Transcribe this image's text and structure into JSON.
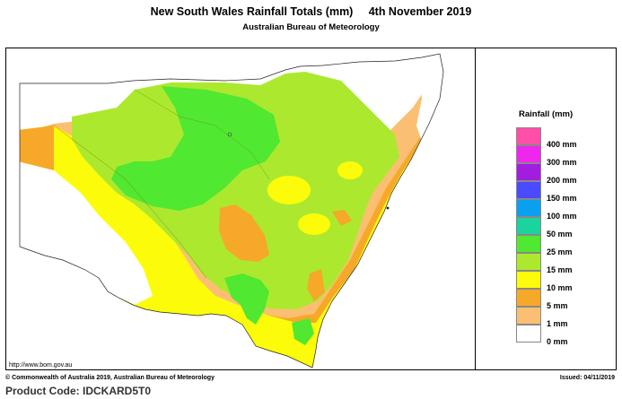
{
  "header": {
    "title": "New South Wales Rainfall Totals (mm)     4th November 2019",
    "subtitle": "Australian Bureau of Meteorology"
  },
  "legend": {
    "title": "Rainfall (mm)",
    "items": [
      {
        "label": "400 mm",
        "color": "#ff4fa7"
      },
      {
        "label": "300 mm",
        "color": "#ee26ee"
      },
      {
        "label": "200 mm",
        "color": "#a21de0"
      },
      {
        "label": "150 mm",
        "color": "#4a4aff"
      },
      {
        "label": "100 mm",
        "color": "#0aa0f0"
      },
      {
        "label": "50 mm",
        "color": "#1ad39f"
      },
      {
        "label": "25 mm",
        "color": "#50e830"
      },
      {
        "label": "15 mm",
        "color": "#ace92e"
      },
      {
        "label": "10 mm",
        "color": "#fcfc0a"
      },
      {
        "label": "5 mm",
        "color": "#f6a828"
      },
      {
        "label": "1 mm",
        "color": "#fbbf73"
      },
      {
        "label": "0 mm",
        "color": "#ffffff"
      }
    ]
  },
  "footer": {
    "url": "http://www.bom.gov.au",
    "copyright": "© Commonwealth of Australia 2019, Australian Bureau of Meteorology",
    "issued": "Issued: 04/11/2019",
    "product_code": "Product Code: IDCKARD5T0"
  }
}
